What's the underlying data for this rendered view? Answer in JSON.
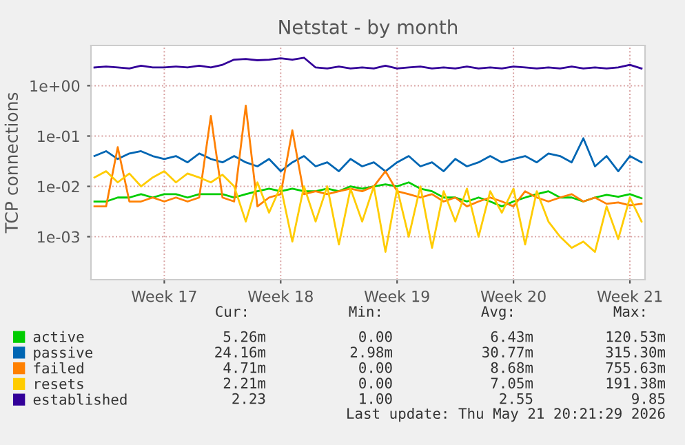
{
  "chart_data": {
    "type": "line",
    "title": "Netstat - by month",
    "ylabel": "TCP connections",
    "log": "y",
    "grid": true,
    "legend": "bottom",
    "marker": "none",
    "line_style": "solid",
    "categories": [
      null,
      null,
      null,
      null,
      null,
      null,
      "Week 17",
      null,
      null,
      null,
      null,
      null,
      null,
      null,
      null,
      null,
      "Week 18",
      null,
      null,
      null,
      null,
      null,
      null,
      null,
      null,
      null,
      "Week 19",
      null,
      null,
      null,
      null,
      null,
      null,
      null,
      null,
      null,
      "Week 20",
      null,
      null,
      null,
      null,
      null,
      null,
      null,
      null,
      null,
      "Week 21",
      null
    ],
    "ylim": [
      0.00014,
      6.3
    ],
    "yticks": [
      {
        "value": 0.001,
        "label": "1e-03"
      },
      {
        "value": 0.01,
        "label": "1e-02"
      },
      {
        "value": 0.1,
        "label": "1e-01"
      },
      {
        "value": 1,
        "label": "1e+00"
      }
    ],
    "series": [
      {
        "name": "active",
        "color": "#00cc00",
        "values": [
          0.005,
          0.005,
          0.006,
          0.006,
          0.007,
          0.006,
          0.007,
          0.007,
          0.006,
          0.007,
          0.007,
          0.007,
          0.006,
          0.007,
          0.008,
          0.009,
          0.008,
          0.009,
          0.008,
          0.008,
          0.009,
          0.008,
          0.01,
          0.009,
          0.01,
          0.011,
          0.01,
          0.012,
          0.009,
          0.008,
          0.006,
          0.006,
          0.005,
          0.006,
          0.005,
          0.004,
          0.005,
          0.006,
          0.007,
          0.008,
          0.006,
          0.006,
          0.005,
          0.006,
          0.0068,
          0.0062,
          0.007,
          0.0058
        ]
      },
      {
        "name": "passive",
        "color": "#0066b3",
        "values": [
          0.04,
          0.05,
          0.035,
          0.045,
          0.05,
          0.04,
          0.035,
          0.04,
          0.03,
          0.045,
          0.035,
          0.03,
          0.04,
          0.03,
          0.025,
          0.035,
          0.02,
          0.03,
          0.04,
          0.025,
          0.03,
          0.02,
          0.035,
          0.025,
          0.03,
          0.02,
          0.03,
          0.04,
          0.025,
          0.03,
          0.02,
          0.035,
          0.025,
          0.03,
          0.04,
          0.03,
          0.035,
          0.04,
          0.03,
          0.045,
          0.04,
          0.03,
          0.09,
          0.025,
          0.04,
          0.02,
          0.04,
          0.03
        ]
      },
      {
        "name": "failed",
        "color": "#ff8000",
        "values": [
          0.004,
          0.004,
          0.06,
          0.005,
          0.005,
          0.006,
          0.005,
          0.006,
          0.005,
          0.006,
          0.25,
          0.006,
          0.005,
          0.4,
          0.004,
          0.006,
          0.007,
          0.13,
          0.007,
          0.008,
          0.007,
          0.008,
          0.009,
          0.008,
          0.01,
          0.02,
          0.008,
          0.007,
          0.006,
          0.007,
          0.005,
          0.006,
          0.004,
          0.005,
          0.006,
          0.005,
          0.004,
          0.008,
          0.006,
          0.005,
          0.006,
          0.007,
          0.005,
          0.006,
          0.0045,
          0.0048,
          0.0042,
          0.0045
        ]
      },
      {
        "name": "resets",
        "color": "#ffcc00",
        "values": [
          0.015,
          0.02,
          0.012,
          0.018,
          0.01,
          0.015,
          0.02,
          0.012,
          0.018,
          0.015,
          0.012,
          0.017,
          0.01,
          0.002,
          0.012,
          0.003,
          0.01,
          0.0008,
          0.01,
          0.002,
          0.01,
          0.0007,
          0.009,
          0.002,
          0.01,
          0.0005,
          0.009,
          0.001,
          0.01,
          0.0006,
          0.008,
          0.002,
          0.009,
          0.001,
          0.008,
          0.003,
          0.009,
          0.0007,
          0.008,
          0.002,
          0.001,
          0.0006,
          0.0008,
          0.0005,
          0.004,
          0.0009,
          0.006,
          0.002
        ]
      },
      {
        "name": "established",
        "color": "#330099",
        "values": [
          2.3,
          2.4,
          2.3,
          2.2,
          2.5,
          2.3,
          2.3,
          2.4,
          2.3,
          2.5,
          2.3,
          2.6,
          3.3,
          3.4,
          3.2,
          3.3,
          3.5,
          3.3,
          3.6,
          2.3,
          2.2,
          2.4,
          2.2,
          2.3,
          2.2,
          2.5,
          2.2,
          2.3,
          2.4,
          2.2,
          2.3,
          2.2,
          2.4,
          2.2,
          2.3,
          2.2,
          2.4,
          2.3,
          2.2,
          2.3,
          2.2,
          2.4,
          2.2,
          2.3,
          2.2,
          2.3,
          2.6,
          2.2
        ]
      }
    ],
    "annotations": [
      "Cur:",
      "Min:",
      "Avg:",
      "Max:",
      "5.26m",
      "0.00",
      "6.43m",
      "120.53m",
      "24.16m",
      "2.98m",
      "30.77m",
      "315.30m",
      "4.71m",
      "0.00",
      "8.68m",
      "755.63m",
      "2.21m",
      "0.00",
      "7.05m",
      "191.38m",
      "2.23",
      "1.00",
      "2.55",
      "9.85",
      "Last update: Thu May 21 20:21:29 2026"
    ]
  }
}
